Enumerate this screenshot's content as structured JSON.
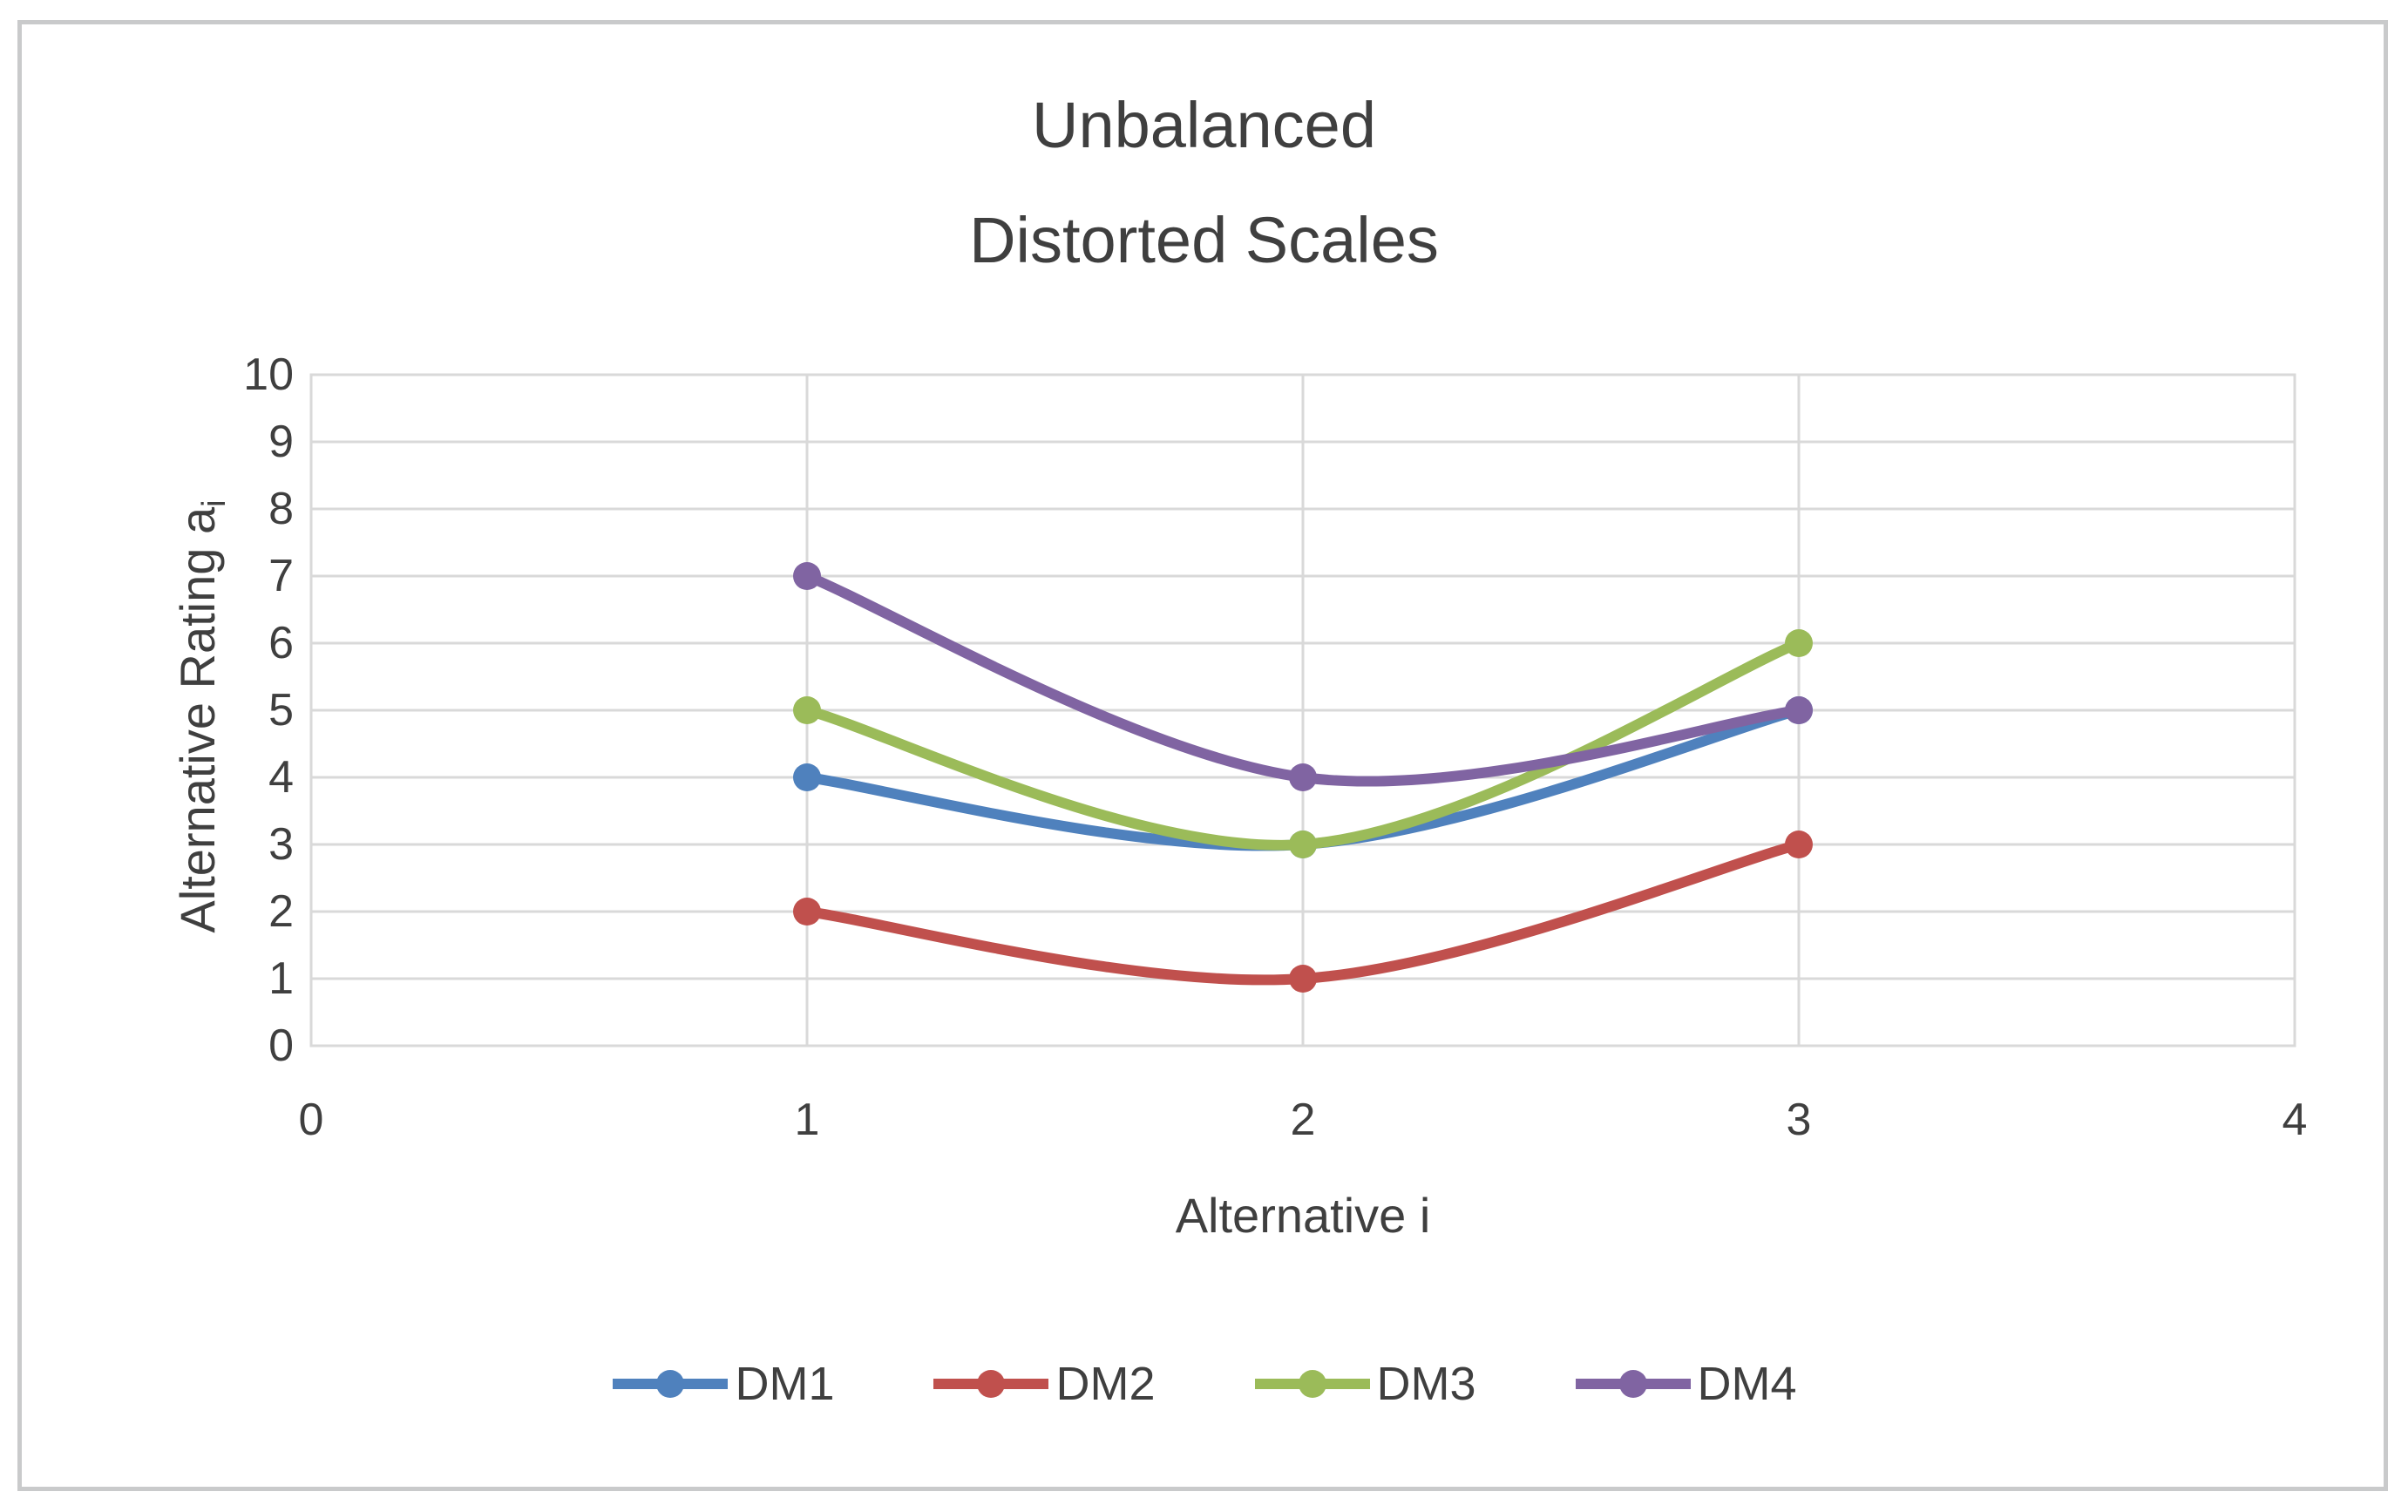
{
  "figure": {
    "background": "#ffffff",
    "frame_color": "#c9cacb"
  },
  "chart_data": {
    "type": "line",
    "title_lines": [
      "Unbalanced",
      "Distorted Scales"
    ],
    "xlabel": "Alternative i",
    "ylabel": "Alternative Rating a",
    "ylabel_subscript": "i",
    "x": [
      1,
      2,
      3
    ],
    "series": [
      {
        "name": "DM1",
        "color": "#4F81BD",
        "values": [
          4,
          3,
          5
        ]
      },
      {
        "name": "DM2",
        "color": "#C0504D",
        "values": [
          2,
          1,
          3
        ]
      },
      {
        "name": "DM3",
        "color": "#9BBB59",
        "values": [
          5,
          3,
          6
        ]
      },
      {
        "name": "DM4",
        "color": "#8064A2",
        "values": [
          7,
          4,
          5
        ]
      }
    ],
    "xlim": [
      0,
      4
    ],
    "ylim": [
      0,
      10
    ],
    "x_ticks": [
      0,
      1,
      2,
      3,
      4
    ],
    "y_ticks": [
      0,
      1,
      2,
      3,
      4,
      5,
      6,
      7,
      8,
      9,
      10
    ],
    "grid": true,
    "smooth": true,
    "gridline_color": "#d9d9d9",
    "text_color": "#3f3f3f",
    "legend_position": "bottom",
    "legend_labels": [
      "DM1",
      "DM2",
      "DM3",
      "DM4"
    ]
  }
}
